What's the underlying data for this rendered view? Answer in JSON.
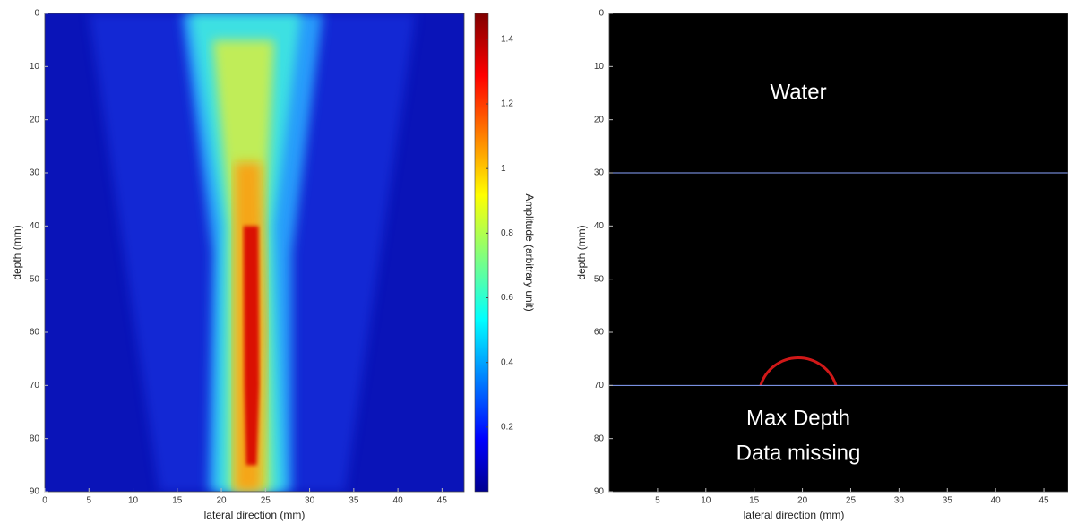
{
  "chart_data": [
    {
      "type": "heatmap",
      "xlabel": "lateral direction (mm)",
      "ylabel": "depth (mm)",
      "xlim": [
        0,
        47.5
      ],
      "xticks": [
        0,
        5,
        10,
        15,
        20,
        25,
        30,
        35,
        40,
        45
      ],
      "ylim": [
        0,
        90
      ],
      "yticks": [
        0,
        10,
        20,
        30,
        40,
        50,
        60,
        70,
        80,
        90
      ],
      "y_inverted": true,
      "colormap": "jet",
      "colorbar": {
        "label": "Amplitude (arbitrary unit)",
        "clim": [
          0,
          1.48
        ],
        "ticks": [
          0.2,
          0.4,
          0.6,
          0.8,
          1,
          1.2,
          1.4
        ]
      }
    },
    {
      "type": "image",
      "xlabel": "lateral direction (mm)",
      "ylabel": "depth (mm)",
      "xlim": [
        0,
        47.5
      ],
      "xticks": [
        5,
        10,
        15,
        20,
        25,
        30,
        35,
        40,
        45
      ],
      "ylim": [
        0,
        90
      ],
      "yticks": [
        0,
        10,
        20,
        30,
        40,
        50,
        60,
        70,
        80,
        90
      ],
      "y_inverted": true,
      "boundaries": [
        30,
        70
      ],
      "boundary_color": "#8aa4ff",
      "annotations": [
        "Water",
        "Max Depth",
        "Data missing"
      ]
    }
  ]
}
